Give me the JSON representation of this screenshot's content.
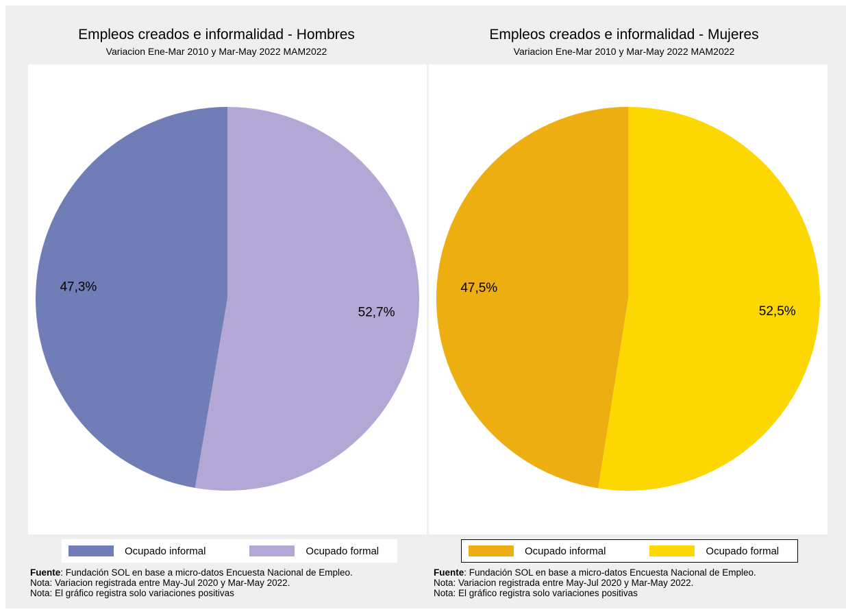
{
  "chart_data": [
    {
      "type": "pie",
      "title": "Empleos creados e informalidad - Hombres",
      "subtitle": "Variacion Ene-Mar 2010 y Mar-May 2022 MAM2022",
      "slices": [
        {
          "name": "Ocupado informal",
          "value": 47.3,
          "label": "47,3%",
          "color": "#717db6"
        },
        {
          "name": "Ocupado formal",
          "value": 52.7,
          "label": "52,7%",
          "color": "#b3a7d6"
        }
      ],
      "legend": [
        "Ocupado informal",
        "Ocupado formal"
      ],
      "legend_placement": "bottom"
    },
    {
      "type": "pie",
      "title": "Empleos creados e informalidad - Mujeres",
      "subtitle": "Variacion Ene-Mar 2010 y Mar-May 2022 MAM2022",
      "slices": [
        {
          "name": "Ocupado informal",
          "value": 47.5,
          "label": "47,5%",
          "color": "#ecae11"
        },
        {
          "name": "Ocupado formal",
          "value": 52.5,
          "label": "52,5%",
          "color": "#fcd701"
        }
      ],
      "legend": [
        "Ocupado informal",
        "Ocupado formal"
      ],
      "legend_placement": "bottom"
    }
  ],
  "notes": {
    "fuente_label": "Fuente",
    "fuente_text": ": Fundación SOL en base a micro-datos Encuesta Nacional de Empleo.",
    "nota1": "Nota: Variacion registrada entre May-Jul 2020 y Mar-May 2022.",
    "nota2": "Nota: El gráfico registra solo variaciones positivas"
  }
}
